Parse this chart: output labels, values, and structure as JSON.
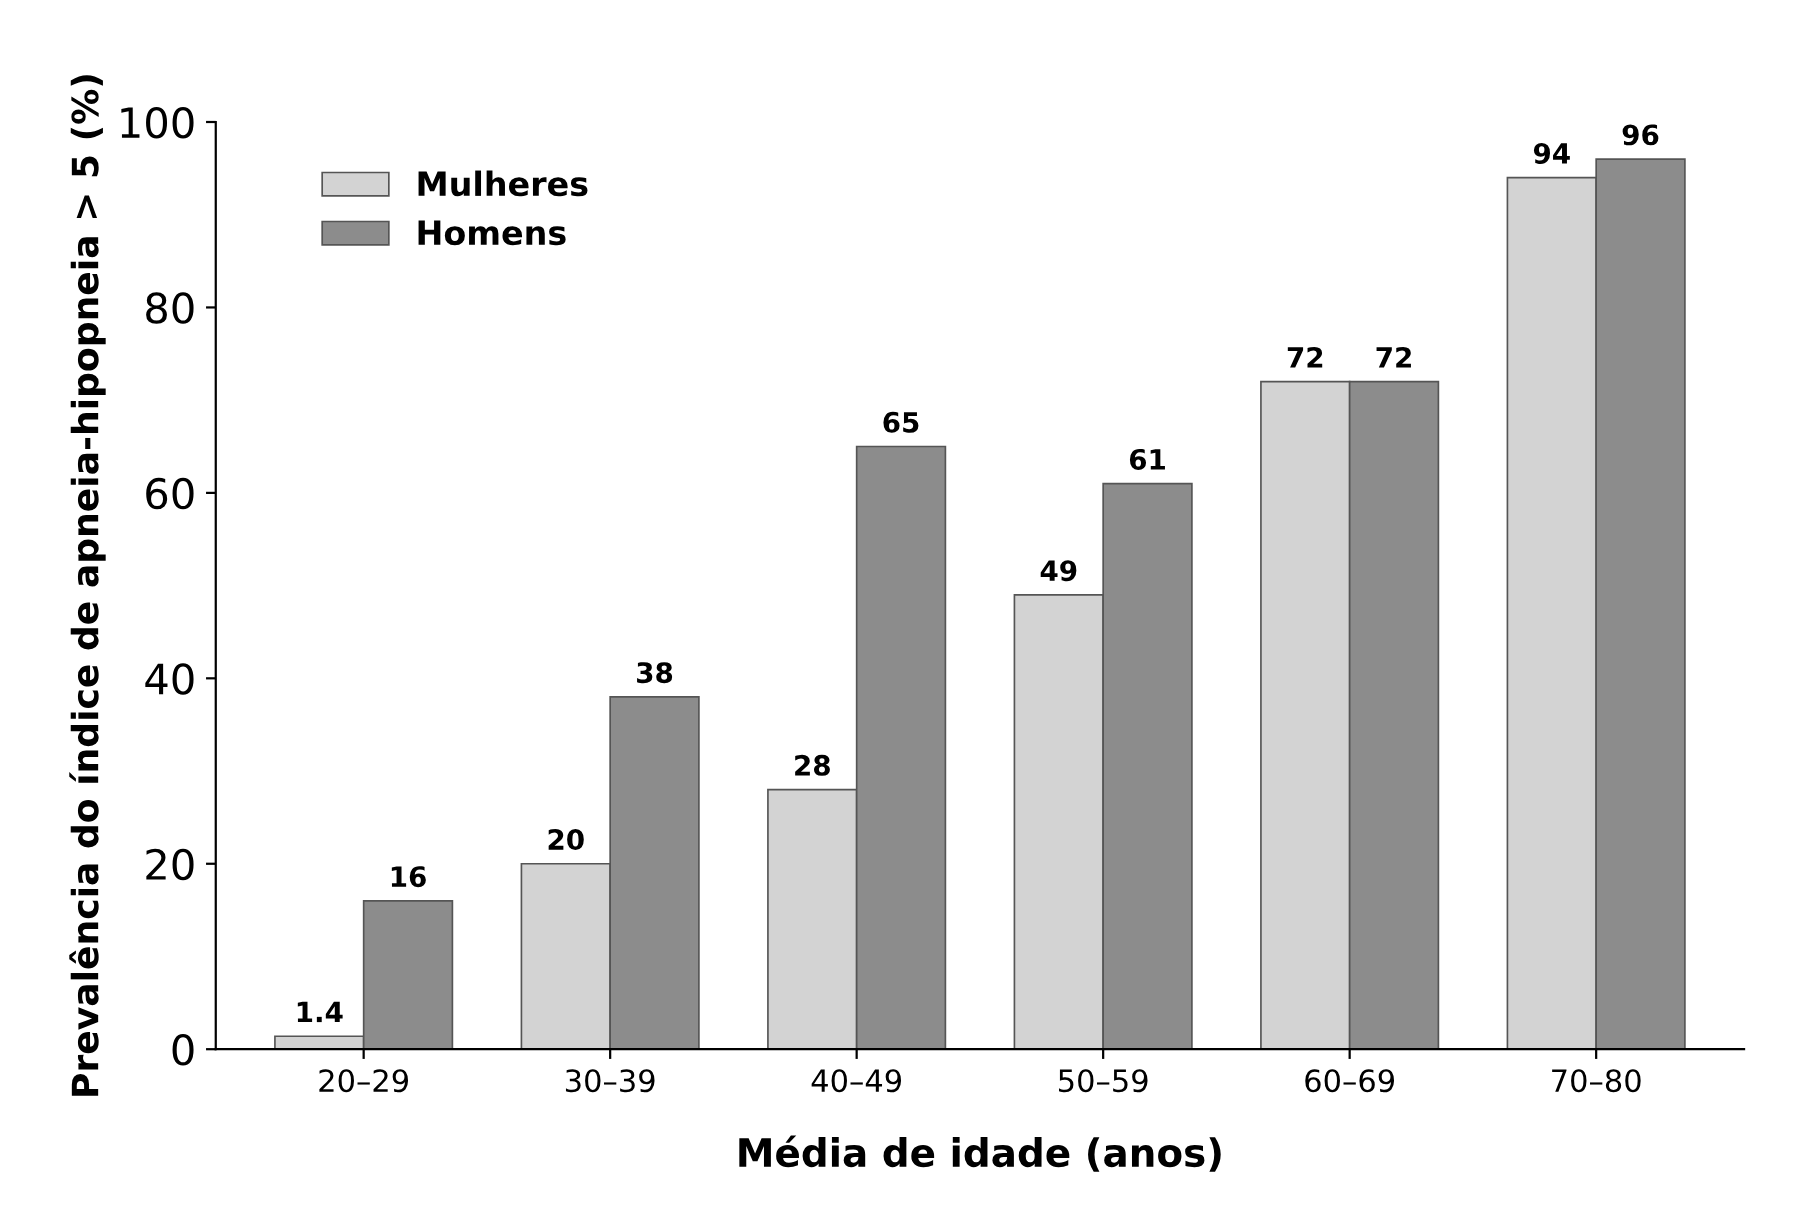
{
  "chart_data": {
    "type": "bar",
    "xlabel": "Média de idade (anos)",
    "ylabel": "Prevalência do índice de apneia-hipopneia > 5 (%)",
    "categories": [
      "20–29",
      "30–39",
      "40–49",
      "50–59",
      "60–69",
      "70–80"
    ],
    "series": [
      {
        "name": "Mulheres",
        "color": "#d3d3d3",
        "values": [
          1.4,
          20,
          28,
          49,
          72,
          94
        ]
      },
      {
        "name": "Homens",
        "color": "#8c8c8c",
        "values": [
          16,
          38,
          65,
          61,
          72,
          96
        ]
      }
    ],
    "ylim": [
      0,
      100
    ],
    "yticks": [
      0,
      20,
      40,
      60,
      80,
      100
    ],
    "grid": false,
    "legend": "top left",
    "data_labels": true
  }
}
